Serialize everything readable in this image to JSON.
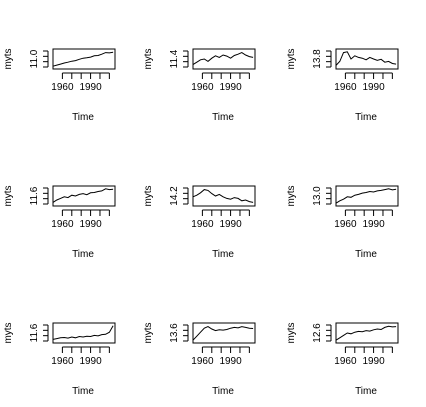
{
  "chart_data": [
    {
      "type": "line",
      "xlabel": "Time",
      "ylabel": "myts",
      "x_ticks": [
        1960,
        1990
      ],
      "y_tick_label": "11.0",
      "x_range": [
        1950,
        2016
      ],
      "ylim": [
        0,
        1
      ],
      "x": [
        1950,
        1954,
        1958,
        1962,
        1966,
        1970,
        1974,
        1978,
        1982,
        1986,
        1990,
        1994,
        1998,
        2002,
        2006,
        2010,
        2014
      ],
      "values": [
        0.05,
        0.12,
        0.18,
        0.25,
        0.3,
        0.36,
        0.4,
        0.48,
        0.55,
        0.58,
        0.62,
        0.7,
        0.72,
        0.8,
        0.9,
        0.88,
        0.92
      ]
    },
    {
      "type": "line",
      "xlabel": "Time",
      "ylabel": "myts",
      "x_ticks": [
        1960,
        1990
      ],
      "y_tick_label": "11.4",
      "x_range": [
        1950,
        2016
      ],
      "ylim": [
        0,
        1
      ],
      "x": [
        1950,
        1954,
        1958,
        1962,
        1966,
        1970,
        1974,
        1978,
        1982,
        1986,
        1990,
        1994,
        1998,
        2002,
        2006,
        2010,
        2014
      ],
      "values": [
        0.15,
        0.3,
        0.45,
        0.5,
        0.35,
        0.55,
        0.7,
        0.6,
        0.75,
        0.68,
        0.55,
        0.72,
        0.8,
        0.9,
        0.75,
        0.65,
        0.6
      ]
    },
    {
      "type": "line",
      "xlabel": "Time",
      "ylabel": "myts",
      "x_ticks": [
        1960,
        1990
      ],
      "y_tick_label": "13.8",
      "x_range": [
        1950,
        2016
      ],
      "ylim": [
        0,
        1
      ],
      "x": [
        1950,
        1954,
        1958,
        1962,
        1966,
        1970,
        1974,
        1978,
        1982,
        1986,
        1990,
        1994,
        1998,
        2002,
        2006,
        2010,
        2014
      ],
      "values": [
        0.1,
        0.35,
        0.9,
        0.95,
        0.5,
        0.7,
        0.6,
        0.55,
        0.45,
        0.6,
        0.5,
        0.42,
        0.48,
        0.3,
        0.35,
        0.22,
        0.18
      ]
    },
    {
      "type": "line",
      "xlabel": "Time",
      "ylabel": "myts",
      "x_ticks": [
        1960,
        1990
      ],
      "y_tick_label": "11.6",
      "x_range": [
        1950,
        2016
      ],
      "ylim": [
        0,
        1
      ],
      "x": [
        1950,
        1954,
        1958,
        1962,
        1966,
        1970,
        1974,
        1978,
        1982,
        1986,
        1990,
        1994,
        1998,
        2002,
        2006,
        2010,
        2014
      ],
      "values": [
        0.1,
        0.25,
        0.35,
        0.45,
        0.4,
        0.55,
        0.5,
        0.6,
        0.65,
        0.58,
        0.7,
        0.72,
        0.78,
        0.82,
        0.95,
        0.9,
        0.92
      ]
    },
    {
      "type": "line",
      "xlabel": "Time",
      "ylabel": "myts",
      "x_ticks": [
        1960,
        1990
      ],
      "y_tick_label": "14.2",
      "x_range": [
        1950,
        2016
      ],
      "ylim": [
        0,
        1
      ],
      "x": [
        1950,
        1954,
        1958,
        1962,
        1966,
        1970,
        1974,
        1978,
        1982,
        1986,
        1990,
        1994,
        1998,
        2002,
        2006,
        2010,
        2014
      ],
      "values": [
        0.45,
        0.55,
        0.7,
        0.9,
        0.85,
        0.65,
        0.5,
        0.6,
        0.45,
        0.35,
        0.3,
        0.4,
        0.35,
        0.2,
        0.25,
        0.15,
        0.1
      ]
    },
    {
      "type": "line",
      "xlabel": "Time",
      "ylabel": "myts",
      "x_ticks": [
        1960,
        1990
      ],
      "y_tick_label": "13.0",
      "x_range": [
        1950,
        2016
      ],
      "ylim": [
        0,
        1
      ],
      "x": [
        1950,
        1954,
        1958,
        1962,
        1966,
        1970,
        1974,
        1978,
        1982,
        1986,
        1990,
        1994,
        1998,
        2002,
        2006,
        2010,
        2014
      ],
      "values": [
        0.05,
        0.2,
        0.3,
        0.45,
        0.42,
        0.55,
        0.6,
        0.68,
        0.72,
        0.78,
        0.75,
        0.82,
        0.85,
        0.9,
        0.95,
        0.88,
        0.92
      ]
    },
    {
      "type": "line",
      "xlabel": "Time",
      "ylabel": "myts",
      "x_ticks": [
        1960,
        1990
      ],
      "y_tick_label": "11.6",
      "x_range": [
        1950,
        2016
      ],
      "ylim": [
        0,
        1
      ],
      "x": [
        1950,
        1954,
        1958,
        1962,
        1966,
        1970,
        1974,
        1978,
        1982,
        1986,
        1990,
        1994,
        1998,
        2002,
        2006,
        2010,
        2014
      ],
      "values": [
        0.1,
        0.15,
        0.2,
        0.22,
        0.18,
        0.25,
        0.2,
        0.28,
        0.25,
        0.3,
        0.28,
        0.35,
        0.32,
        0.4,
        0.42,
        0.55,
        0.95
      ]
    },
    {
      "type": "line",
      "xlabel": "Time",
      "ylabel": "myts",
      "x_ticks": [
        1960,
        1990
      ],
      "y_tick_label": "13.6",
      "x_range": [
        1950,
        2016
      ],
      "ylim": [
        0,
        1
      ],
      "x": [
        1950,
        1954,
        1958,
        1962,
        1966,
        1970,
        1974,
        1978,
        1982,
        1986,
        1990,
        1994,
        1998,
        2002,
        2006,
        2010,
        2014
      ],
      "values": [
        0.05,
        0.3,
        0.55,
        0.8,
        0.9,
        0.75,
        0.65,
        0.7,
        0.68,
        0.72,
        0.8,
        0.85,
        0.82,
        0.9,
        0.85,
        0.8,
        0.78
      ]
    },
    {
      "type": "line",
      "xlabel": "Time",
      "ylabel": "myts",
      "x_ticks": [
        1960,
        1990
      ],
      "y_tick_label": "12.6",
      "x_range": [
        1950,
        2016
      ],
      "ylim": [
        0,
        1
      ],
      "x": [
        1950,
        1954,
        1958,
        1962,
        1966,
        1970,
        1974,
        1978,
        1982,
        1986,
        1990,
        1994,
        1998,
        2002,
        2006,
        2010,
        2014
      ],
      "values": [
        0.05,
        0.2,
        0.35,
        0.5,
        0.45,
        0.55,
        0.6,
        0.58,
        0.65,
        0.62,
        0.7,
        0.75,
        0.72,
        0.85,
        0.92,
        0.88,
        0.9
      ]
    }
  ]
}
